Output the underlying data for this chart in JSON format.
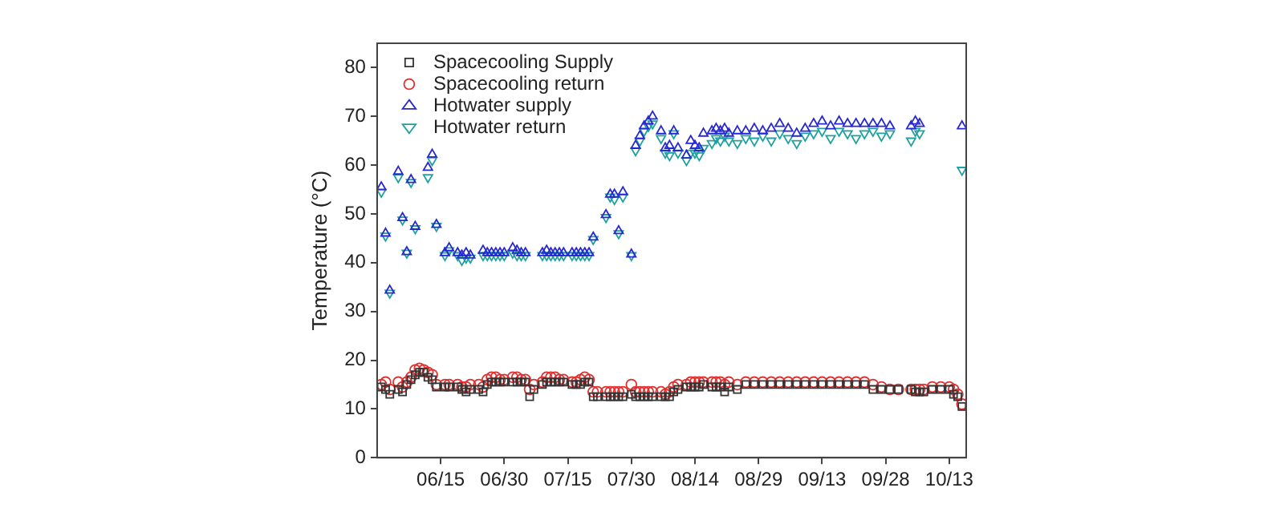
{
  "chart_data": {
    "type": "scatter",
    "ylabel": "Temperature (°C)",
    "x": [
      "--06-01",
      "--06-02",
      "--06-03",
      "--06-05",
      "--06-06",
      "--06-07",
      "--06-08",
      "--06-09",
      "--06-10",
      "--06-11",
      "--06-12",
      "--06-13",
      "--06-14",
      "--06-16",
      "--06-17",
      "--06-19",
      "--06-20",
      "--06-21",
      "--06-22",
      "--06-24",
      "--06-25",
      "--06-26",
      "--06-27",
      "--06-28",
      "--06-29",
      "--06-30",
      "--07-02",
      "--07-03",
      "--07-04",
      "--07-05",
      "--07-06",
      "--07-07",
      "--07-09",
      "--07-10",
      "--07-11",
      "--07-12",
      "--07-13",
      "--07-14",
      "--07-16",
      "--07-17",
      "--07-18",
      "--07-19",
      "--07-20",
      "--07-21",
      "--07-22",
      "--07-24",
      "--07-25",
      "--07-26",
      "--07-27",
      "--07-28",
      "--07-30",
      "--07-31",
      "--08-01",
      "--08-02",
      "--08-03",
      "--08-04",
      "--08-06",
      "--08-07",
      "--08-08",
      "--08-09",
      "--08-10",
      "--08-12",
      "--08-13",
      "--08-14",
      "--08-15",
      "--08-16",
      "--08-18",
      "--08-19",
      "--08-20",
      "--08-21",
      "--08-22",
      "--08-24",
      "--08-26",
      "--08-28",
      "--08-30",
      "--09-01",
      "--09-03",
      "--09-05",
      "--09-07",
      "--09-09",
      "--09-11",
      "--09-13",
      "--09-15",
      "--09-17",
      "--09-19",
      "--09-21",
      "--09-23",
      "--09-25",
      "--09-27",
      "--09-29",
      "--10-01",
      "--10-04",
      "--10-05",
      "--10-06",
      "--10-07",
      "--10-09",
      "--10-11",
      "--10-13",
      "--10-14",
      "--10-15",
      "--10-16"
    ],
    "series": [
      {
        "name": "Spacecooling Supply",
        "color": "#333333",
        "marker": "square",
        "values": [
          14.5,
          14,
          13,
          14,
          13.5,
          15,
          16,
          17,
          17.5,
          17.5,
          16.5,
          16,
          14.5,
          14.5,
          14.5,
          14.5,
          14,
          13.5,
          14,
          14,
          13.5,
          15,
          15.5,
          15.5,
          15.5,
          15.5,
          15.5,
          15.5,
          15.5,
          15.5,
          12.5,
          14,
          15,
          15.5,
          15.5,
          15.5,
          15.5,
          15.5,
          15,
          15,
          15,
          15.5,
          15.5,
          12.5,
          12.5,
          12.5,
          12.5,
          12.5,
          12.5,
          12.5,
          13,
          12.5,
          12.5,
          12.5,
          12.5,
          12.5,
          12.5,
          12.5,
          12.5,
          13.5,
          14,
          14.5,
          14.5,
          14.5,
          14.5,
          15,
          14.5,
          14.5,
          14.5,
          13.5,
          14.5,
          14,
          15,
          15,
          15,
          15,
          15,
          15,
          15,
          15,
          15,
          15,
          15,
          15,
          15,
          15,
          15,
          14,
          14,
          14,
          14,
          14,
          13.5,
          13.5,
          13.5,
          14,
          14,
          14,
          13,
          12.5,
          10.5
        ]
      },
      {
        "name": "Spacecooling return",
        "color": "#e03030",
        "marker": "circle",
        "values": [
          15,
          15.5,
          14,
          15.5,
          14.5,
          15.5,
          16.5,
          18,
          18.3,
          18,
          17.5,
          17,
          15,
          15,
          15,
          15,
          14.5,
          14.5,
          15,
          15,
          14.5,
          16,
          16.5,
          16.5,
          16,
          16,
          16.5,
          16.5,
          16,
          16,
          14,
          15,
          15.5,
          16.5,
          16.5,
          16.5,
          16,
          16,
          15.5,
          15.5,
          16,
          16.5,
          16,
          13.5,
          13.5,
          13.5,
          13.5,
          13.5,
          13.5,
          13.5,
          15,
          13.5,
          13.5,
          13.5,
          13.5,
          13.5,
          13.5,
          13,
          13.5,
          14.5,
          15,
          15,
          15.5,
          15.5,
          15.5,
          15.5,
          15.5,
          15.5,
          15.5,
          15,
          15.5,
          15,
          15.5,
          15.5,
          15.5,
          15.5,
          15.5,
          15.5,
          15.5,
          15.5,
          15.5,
          15.5,
          15.5,
          15.5,
          15.5,
          15.5,
          15.5,
          15,
          14.5,
          14,
          14,
          14,
          14,
          14,
          14,
          14.5,
          14.5,
          14.5,
          14,
          13,
          11
        ]
      },
      {
        "name": "Hotwater supply",
        "color": "#2828d0",
        "marker": "triangle",
        "values": [
          55.5,
          46,
          34.3,
          58.7,
          49.2,
          42.2,
          57,
          47.4,
          null,
          null,
          59.5,
          62.2,
          47.8,
          42,
          43,
          42,
          41.5,
          42,
          41.5,
          null,
          42.5,
          42,
          42,
          42,
          42,
          42,
          43,
          42.5,
          42,
          42,
          null,
          null,
          42,
          42.5,
          42,
          42,
          42,
          42,
          42,
          42,
          42,
          42,
          42,
          45.2,
          null,
          49.8,
          54,
          54,
          46.5,
          54.5,
          41.7,
          64,
          66,
          68,
          69,
          70,
          67,
          63.5,
          64,
          67,
          63.5,
          62,
          65,
          64,
          63.5,
          66.5,
          67,
          67.5,
          67,
          67.5,
          66.5,
          67,
          67,
          67.5,
          67,
          67.5,
          68.5,
          67.5,
          66.5,
          67.5,
          68.5,
          69,
          68,
          69,
          68.5,
          68.5,
          68.5,
          68.5,
          68.5,
          68,
          null,
          68,
          69,
          68.5,
          null,
          null,
          null,
          null,
          null,
          null,
          68
        ]
      },
      {
        "name": "Hotwater return",
        "color": "#20a0a0",
        "marker": "triangle-down",
        "values": [
          54.5,
          45.5,
          33.8,
          57.5,
          48.8,
          42,
          56.5,
          47,
          null,
          null,
          57.5,
          61,
          47.5,
          41.5,
          42.5,
          41.5,
          40.5,
          41,
          41,
          null,
          41.5,
          41.5,
          41.5,
          41.5,
          41.5,
          41.5,
          42,
          41.5,
          41.5,
          41.5,
          null,
          null,
          41.5,
          41.5,
          41.5,
          41.5,
          41.5,
          41.5,
          41.5,
          41.5,
          41.5,
          41.5,
          41.5,
          44.8,
          null,
          49.3,
          53.5,
          53,
          46,
          53.5,
          41.5,
          63,
          65,
          67,
          68,
          68.5,
          65.5,
          62.5,
          62,
          66.5,
          62.5,
          61,
          62.5,
          62.5,
          62,
          63.5,
          64.5,
          65.5,
          65,
          66,
          65,
          64.5,
          65.5,
          65,
          66,
          65,
          66.5,
          65.5,
          64.5,
          66,
          66.5,
          67,
          65.5,
          67,
          66.5,
          65.5,
          66.5,
          67,
          66,
          66.5,
          null,
          65,
          67,
          66.5,
          null,
          null,
          null,
          null,
          null,
          null,
          59
        ]
      }
    ],
    "xlim": [
      "--05-31",
      "--10-17"
    ],
    "xticks": [
      {
        "value": "--06-15",
        "label": "06/15"
      },
      {
        "value": "--06-30",
        "label": "06/30"
      },
      {
        "value": "--07-15",
        "label": "07/15"
      },
      {
        "value": "--07-30",
        "label": "07/30"
      },
      {
        "value": "--08-14",
        "label": "08/14"
      },
      {
        "value": "--08-29",
        "label": "08/29"
      },
      {
        "value": "--09-13",
        "label": "09/13"
      },
      {
        "value": "--09-28",
        "label": "09/28"
      },
      {
        "value": "--10-13",
        "label": "10/13"
      }
    ],
    "ylim": [
      0,
      85
    ],
    "yticks": [
      0,
      10,
      20,
      30,
      40,
      50,
      60,
      70,
      80
    ],
    "grid": false,
    "legend": "top left"
  }
}
